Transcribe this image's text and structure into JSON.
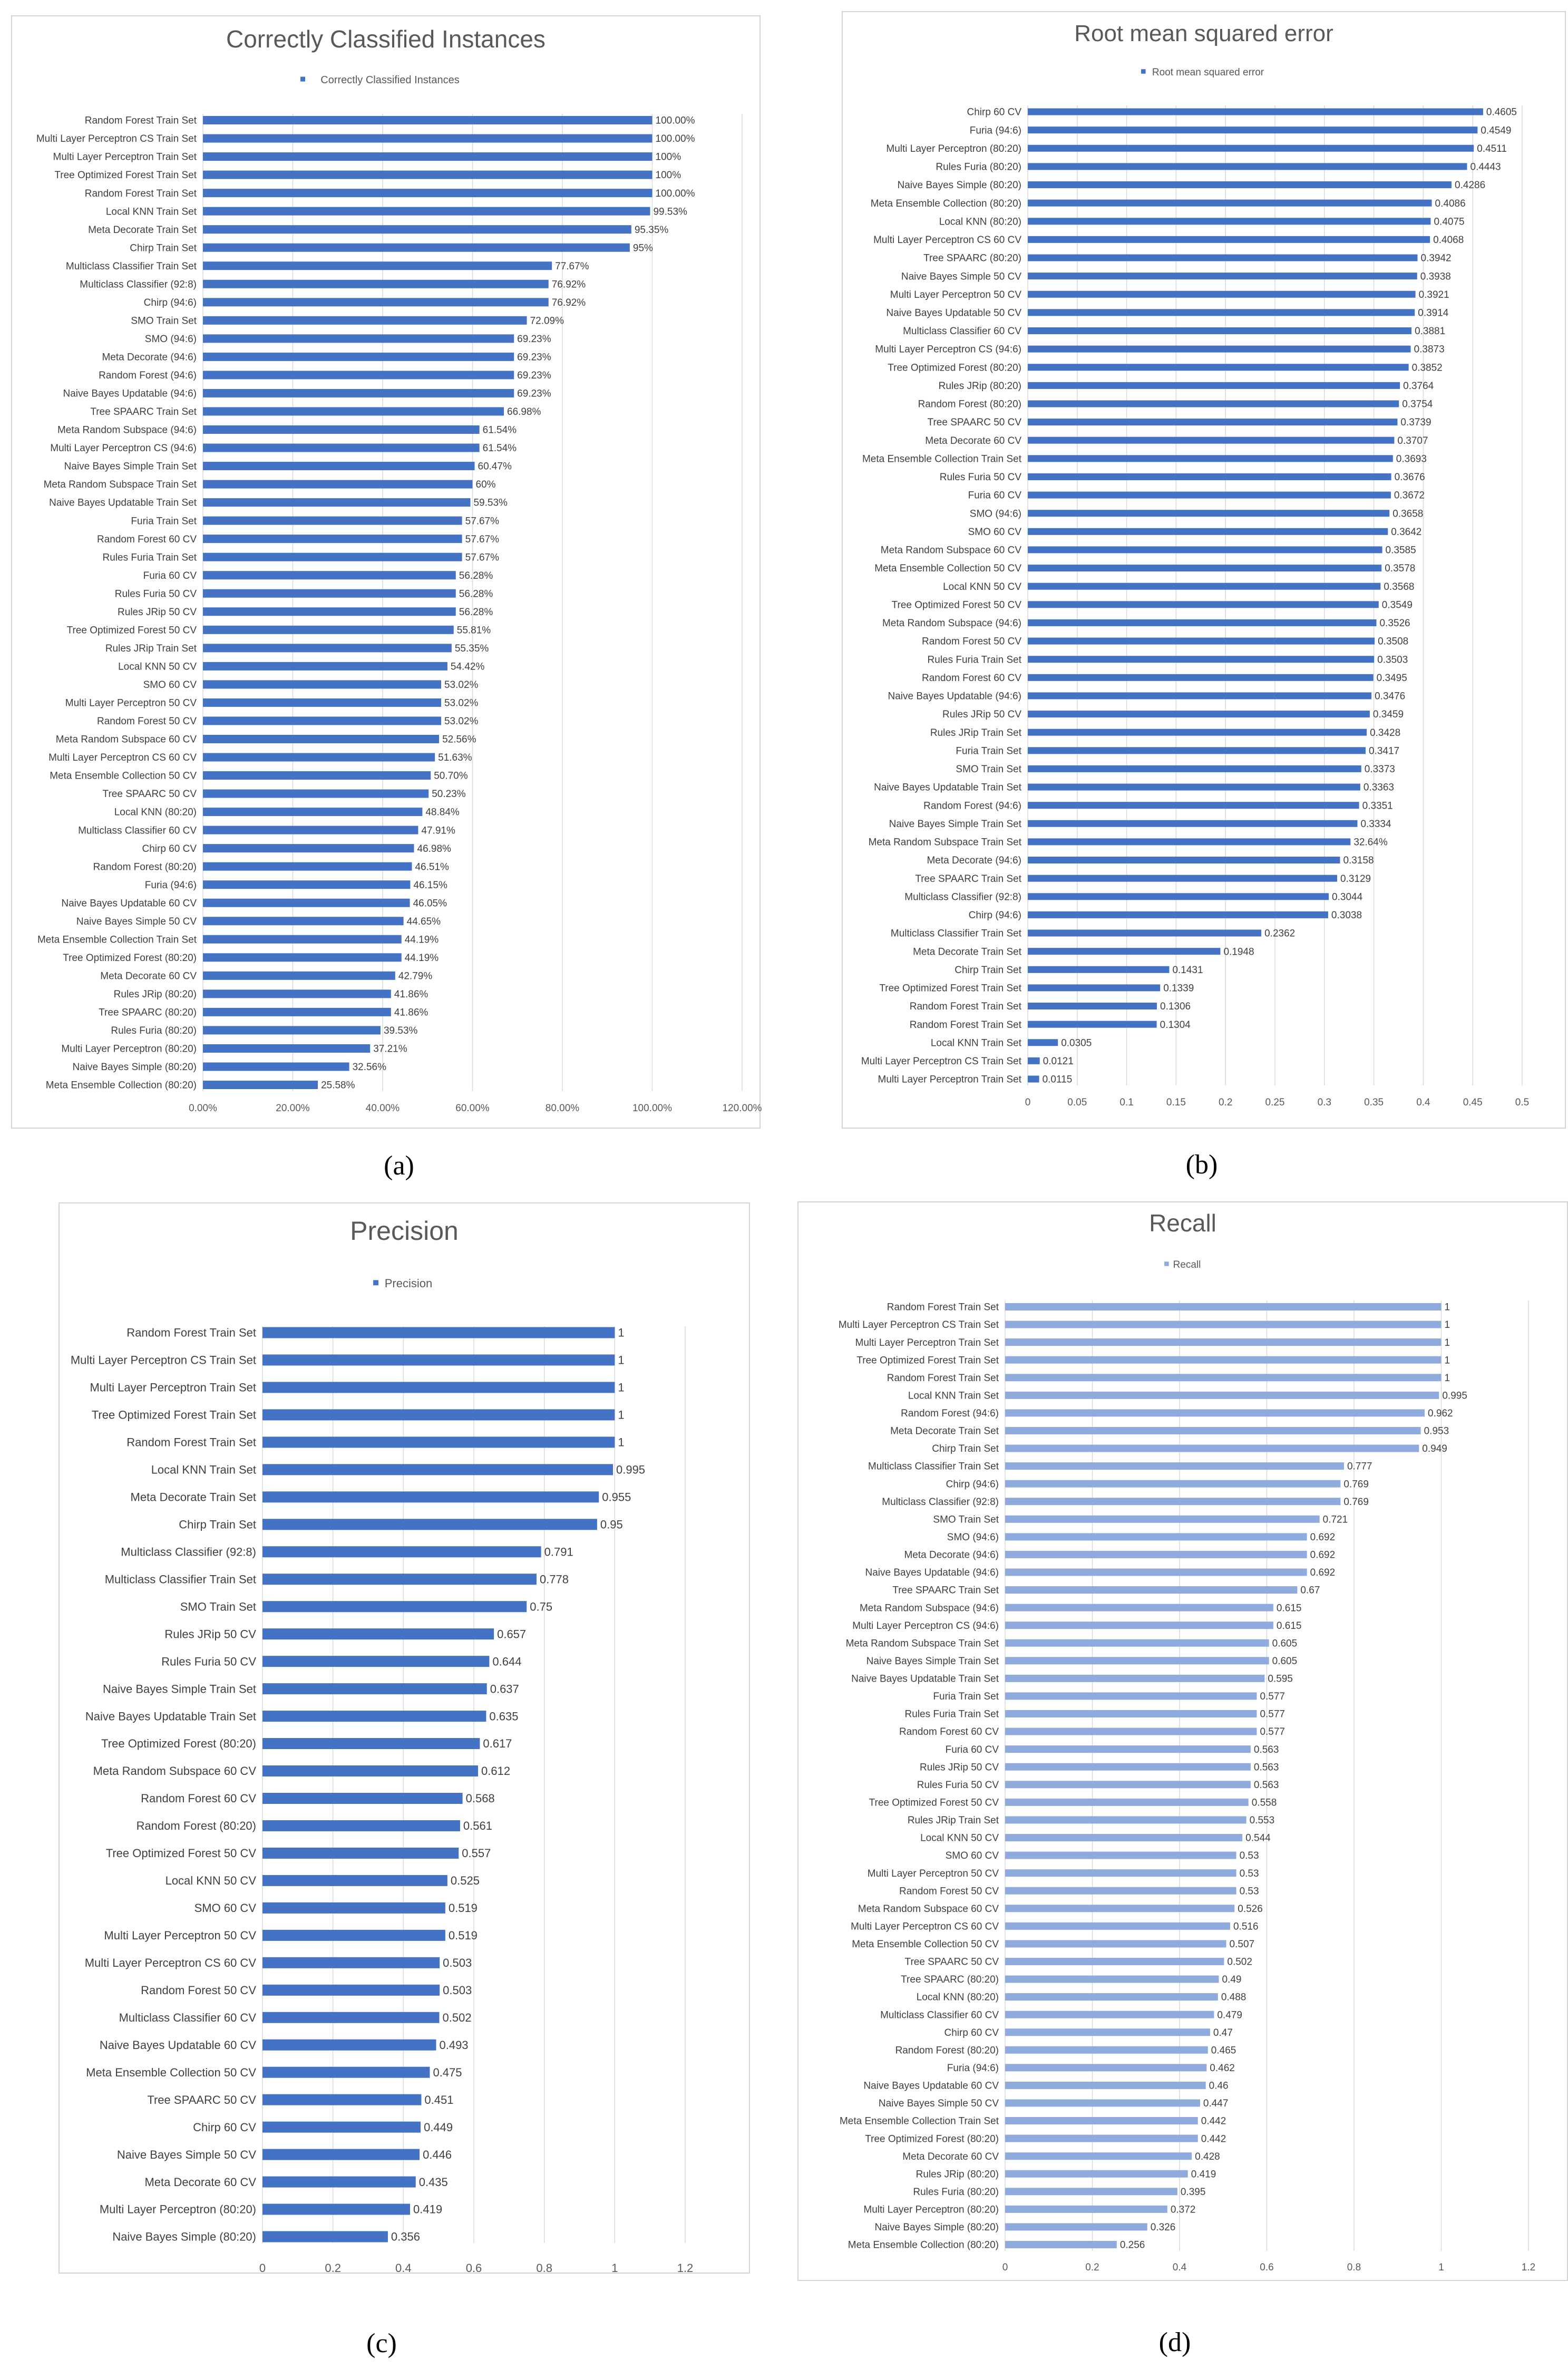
{
  "chart_data": [
    {
      "type": "bar",
      "panel": "(a)",
      "title": "Correctly Classified Instances",
      "legend": "Correctly Classified Instances",
      "color": "#4472c4",
      "xlim": [
        0,
        120
      ],
      "ticks": [
        "0.00%",
        "20.00%",
        "40.00%",
        "60.00%",
        "80.00%",
        "100.00%",
        "120.00%"
      ],
      "categories": [
        "Random Forest Train Set",
        "Multi Layer Perceptron CS Train Set",
        "Multi Layer Perceptron Train Set",
        "Tree Optimized Forest Train Set",
        "Random Forest Train Set",
        "Local KNN Train Set",
        "Meta Decorate Train Set",
        "Chirp Train Set",
        "Multiclass Classifier Train Set",
        "Multiclass Classifier (92:8)",
        "Chirp (94:6)",
        "SMO Train Set",
        "SMO (94:6)",
        "Meta Decorate (94:6)",
        "Random Forest (94:6)",
        "Naive Bayes Updatable (94:6)",
        "Tree SPAARC Train Set",
        "Meta Random Subspace (94:6)",
        "Multi Layer Perceptron CS (94:6)",
        "Naive Bayes Simple Train Set",
        "Meta Random Subspace Train Set",
        "Naive Bayes Updatable Train Set",
        "Furia Train Set",
        "Random Forest 60 CV",
        "Rules Furia Train Set",
        "Furia 60 CV",
        "Rules Furia 50 CV",
        "Rules JRip 50 CV",
        "Tree Optimized Forest 50 CV",
        "Rules JRip Train Set",
        "Local KNN 50 CV",
        "SMO 60 CV",
        "Multi Layer Perceptron 50 CV",
        "Random Forest 50 CV",
        "Meta Random Subspace 60 CV",
        "Multi Layer Perceptron CS 60 CV",
        "Meta Ensemble Collection 50 CV",
        "Tree SPAARC 50 CV",
        "Local KNN (80:20)",
        "Multiclass Classifier 60 CV",
        "Chirp 60 CV",
        "Random Forest (80:20)",
        "Furia (94:6)",
        "Naive Bayes Updatable 60 CV",
        "Naive Bayes Simple 50 CV",
        "Meta Ensemble Collection Train Set",
        "Tree Optimized Forest (80:20)",
        "Meta Decorate 60 CV",
        "Rules JRip (80:20)",
        "Tree SPAARC (80:20)",
        "Rules Furia (80:20)",
        "Multi Layer Perceptron (80:20)",
        "Naive Bayes Simple (80:20)",
        "Meta Ensemble Collection (80:20)"
      ],
      "values": [
        100,
        100,
        100,
        100,
        100,
        99.53,
        95.35,
        95,
        77.67,
        76.92,
        76.92,
        72.09,
        69.23,
        69.23,
        69.23,
        69.23,
        66.98,
        61.54,
        61.54,
        60.47,
        60,
        59.53,
        57.67,
        57.67,
        57.67,
        56.28,
        56.28,
        56.28,
        55.81,
        55.35,
        54.42,
        53.02,
        53.02,
        53.02,
        52.56,
        51.63,
        50.7,
        50.23,
        48.84,
        47.91,
        46.98,
        46.51,
        46.15,
        46.05,
        44.65,
        44.19,
        44.19,
        42.79,
        41.86,
        41.86,
        39.53,
        37.21,
        32.56,
        25.58
      ],
      "labels": [
        "100.00%",
        "100.00%",
        "100%",
        "100%",
        "100.00%",
        "99.53%",
        "95.35%",
        "95%",
        "77.67%",
        "76.92%",
        "76.92%",
        "72.09%",
        "69.23%",
        "69.23%",
        "69.23%",
        "69.23%",
        "66.98%",
        "61.54%",
        "61.54%",
        "60.47%",
        "60%",
        "59.53%",
        "57.67%",
        "57.67%",
        "57.67%",
        "56.28%",
        "56.28%",
        "56.28%",
        "55.81%",
        "55.35%",
        "54.42%",
        "53.02%",
        "53.02%",
        "53.02%",
        "52.56%",
        "51.63%",
        "50.70%",
        "50.23%",
        "48.84%",
        "47.91%",
        "46.98%",
        "46.51%",
        "46.15%",
        "46.05%",
        "44.65%",
        "44.19%",
        "44.19%",
        "42.79%",
        "41.86%",
        "41.86%",
        "39.53%",
        "37.21%",
        "32.56%",
        "25.58%"
      ]
    },
    {
      "type": "bar",
      "panel": "(b)",
      "title": "Root mean squared error",
      "legend": "Root mean squared error",
      "color": "#4472c4",
      "xlim": [
        0,
        0.5
      ],
      "ticks": [
        "0",
        "0.05",
        "0.1",
        "0.15",
        "0.2",
        "0.25",
        "0.3",
        "0.35",
        "0.4",
        "0.45",
        "0.5"
      ],
      "categories": [
        "Chirp 60 CV",
        "Furia (94:6)",
        "Multi Layer Perceptron (80:20)",
        "Rules Furia (80:20)",
        "Naive Bayes Simple (80:20)",
        "Meta Ensemble Collection (80:20)",
        "Local KNN (80:20)",
        "Multi Layer Perceptron CS 60 CV",
        "Tree SPAARC (80:20)",
        "Naive Bayes Simple 50 CV",
        "Multi Layer Perceptron 50 CV",
        "Naive Bayes Updatable 50 CV",
        "Multiclass Classifier 60 CV",
        "Multi Layer Perceptron CS (94:6)",
        "Tree Optimized Forest (80:20)",
        "Rules JRip (80:20)",
        "Random Forest (80:20)",
        "Tree SPAARC 50 CV",
        "Meta Decorate 60 CV",
        "Meta Ensemble Collection Train Set",
        "Rules Furia 50 CV",
        "Furia 60 CV",
        "SMO (94:6)",
        "SMO 60 CV",
        "Meta Random Subspace 60 CV",
        "Meta Ensemble Collection 50 CV",
        "Local KNN 50 CV",
        "Tree Optimized Forest 50 CV",
        "Meta Random Subspace (94:6)",
        "Random Forest 50 CV",
        "Rules Furia Train Set",
        "Random Forest 60 CV",
        "Naive Bayes Updatable (94:6)",
        "Rules JRip 50 CV",
        "Rules JRip Train Set",
        "Furia Train Set",
        "SMO Train Set",
        "Naive Bayes Updatable Train Set",
        "Random Forest (94:6)",
        "Naive Bayes Simple Train Set",
        "Meta Random Subspace Train Set",
        "Meta Decorate (94:6)",
        "Tree SPAARC Train Set",
        "Multiclass Classifier (92:8)",
        "Chirp (94:6)",
        "Multiclass Classifier Train Set",
        "Meta Decorate Train Set",
        "Chirp Train Set",
        "Tree Optimized Forest Train Set",
        "Random Forest Train Set",
        "Random Forest Train Set",
        "Local KNN Train Set",
        "Multi Layer Perceptron CS Train Set",
        "Multi Layer Perceptron Train Set"
      ],
      "values": [
        0.4605,
        0.4549,
        0.4511,
        0.4443,
        0.4286,
        0.4086,
        0.4075,
        0.4068,
        0.3942,
        0.3938,
        0.3921,
        0.3914,
        0.3881,
        0.3873,
        0.3852,
        0.3764,
        0.3754,
        0.3739,
        0.3707,
        0.3693,
        0.3676,
        0.3672,
        0.3658,
        0.3642,
        0.3585,
        0.3578,
        0.3568,
        0.3549,
        0.3526,
        0.3508,
        0.3503,
        0.3495,
        0.3476,
        0.3459,
        0.3428,
        0.3417,
        0.3373,
        0.3363,
        0.3351,
        0.3334,
        0.3264,
        0.3158,
        0.3129,
        0.3044,
        0.3038,
        0.2362,
        0.1948,
        0.1431,
        0.1339,
        0.1306,
        0.1304,
        0.0305,
        0.0121,
        0.0115
      ],
      "labels": [
        "0.4605",
        "0.4549",
        "0.4511",
        "0.4443",
        "0.4286",
        "0.4086",
        "0.4075",
        "0.4068",
        "0.3942",
        "0.3938",
        "0.3921",
        "0.3914",
        "0.3881",
        "0.3873",
        "0.3852",
        "0.3764",
        "0.3754",
        "0.3739",
        "0.3707",
        "0.3693",
        "0.3676",
        "0.3672",
        "0.3658",
        "0.3642",
        "0.3585",
        "0.3578",
        "0.3568",
        "0.3549",
        "0.3526",
        "0.3508",
        "0.3503",
        "0.3495",
        "0.3476",
        "0.3459",
        "0.3428",
        "0.3417",
        "0.3373",
        "0.3363",
        "0.3351",
        "0.3334",
        "32.64%",
        "0.3158",
        "0.3129",
        "0.3044",
        "0.3038",
        "0.2362",
        "0.1948",
        "0.1431",
        "0.1339",
        "0.1306",
        "0.1304",
        "0.0305",
        "0.0121",
        "0.0115"
      ]
    },
    {
      "type": "bar",
      "panel": "(c)",
      "title": "Precision",
      "legend": "Precision",
      "color": "#4472c4",
      "xlim": [
        0,
        1.2
      ],
      "ticks": [
        "0",
        "0.2",
        "0.4",
        "0.6",
        "0.8",
        "1",
        "1.2"
      ],
      "categories": [
        "Random Forest Train Set",
        "Multi Layer Perceptron CS Train Set",
        "Multi Layer Perceptron Train Set",
        "Tree Optimized Forest Train Set",
        "Random Forest Train Set",
        "Local KNN Train Set",
        "Meta Decorate Train Set",
        "Chirp Train Set",
        "Multiclass Classifier (92:8)",
        "Multiclass Classifier Train Set",
        "SMO Train Set",
        "Rules JRip 50 CV",
        "Rules Furia 50 CV",
        "Naive Bayes Simple Train Set",
        "Naive Bayes Updatable Train Set",
        "Tree Optimized Forest (80:20)",
        "Meta Random Subspace 60 CV",
        "Random Forest 60 CV",
        "Random Forest (80:20)",
        "Tree Optimized Forest 50 CV",
        "Local KNN 50 CV",
        "SMO 60 CV",
        "Multi Layer Perceptron 50 CV",
        "Multi Layer Perceptron CS 60 CV",
        "Random Forest 50 CV",
        "Multiclass Classifier 60 CV",
        "Naive Bayes Updatable 60 CV",
        "Meta Ensemble Collection 50 CV",
        "Tree SPAARC 50 CV",
        "Chirp 60 CV",
        "Naive Bayes Simple 50 CV",
        "Meta Decorate 60 CV",
        "Multi Layer Perceptron (80:20)",
        "Naive Bayes Simple (80:20)"
      ],
      "values": [
        1,
        1,
        1,
        1,
        1,
        0.995,
        0.955,
        0.95,
        0.791,
        0.778,
        0.75,
        0.657,
        0.644,
        0.637,
        0.635,
        0.617,
        0.612,
        0.568,
        0.561,
        0.557,
        0.525,
        0.519,
        0.519,
        0.503,
        0.503,
        0.502,
        0.493,
        0.475,
        0.451,
        0.449,
        0.446,
        0.435,
        0.419,
        0.356
      ],
      "labels": [
        "1",
        "1",
        "1",
        "1",
        "1",
        "0.995",
        "0.955",
        "0.95",
        "0.791",
        "0.778",
        "0.75",
        "0.657",
        "0.644",
        "0.637",
        "0.635",
        "0.617",
        "0.612",
        "0.568",
        "0.561",
        "0.557",
        "0.525",
        "0.519",
        "0.519",
        "0.503",
        "0.503",
        "0.502",
        "0.493",
        "0.475",
        "0.451",
        "0.449",
        "0.446",
        "0.435",
        "0.419",
        "0.356"
      ]
    },
    {
      "type": "bar",
      "panel": "(d)",
      "title": "Recall",
      "legend": "Recall",
      "color": "#8faadc",
      "xlim": [
        0,
        1.2
      ],
      "ticks": [
        "0",
        "0.2",
        "0.4",
        "0.6",
        "0.8",
        "1",
        "1.2"
      ],
      "categories": [
        "Random Forest Train Set",
        "Multi Layer Perceptron CS Train Set",
        "Multi Layer Perceptron Train Set",
        "Tree Optimized Forest Train Set",
        "Random Forest Train Set",
        "Local KNN Train Set",
        "Random Forest (94:6)",
        "Meta Decorate Train Set",
        "Chirp Train Set",
        "Multiclass Classifier Train Set",
        "Chirp (94:6)",
        "Multiclass Classifier (92:8)",
        "SMO Train Set",
        "SMO (94:6)",
        "Meta Decorate (94:6)",
        "Naive Bayes Updatable (94:6)",
        "Tree SPAARC Train Set",
        "Meta Random Subspace (94:6)",
        "Multi Layer Perceptron CS (94:6)",
        "Meta Random Subspace Train Set",
        "Naive Bayes Simple Train Set",
        "Naive Bayes Updatable Train Set",
        "Furia Train Set",
        "Rules Furia Train Set",
        "Random Forest 60 CV",
        "Furia 60 CV",
        "Rules JRip 50 CV",
        "Rules Furia 50 CV",
        "Tree Optimized Forest 50 CV",
        "Rules JRip Train Set",
        "Local KNN 50 CV",
        "SMO 60 CV",
        "Multi Layer Perceptron 50 CV",
        "Random Forest 50 CV",
        "Meta Random Subspace 60 CV",
        "Multi Layer Perceptron CS 60 CV",
        "Meta Ensemble Collection 50 CV",
        "Tree SPAARC 50 CV",
        "Tree SPAARC (80:20)",
        "Local KNN (80:20)",
        "Multiclass Classifier 60 CV",
        "Chirp 60 CV",
        "Random Forest (80:20)",
        "Furia (94:6)",
        "Naive Bayes Updatable 60 CV",
        "Naive Bayes Simple 50 CV",
        "Meta Ensemble Collection Train Set",
        "Tree Optimized Forest (80:20)",
        "Meta Decorate 60 CV",
        "Rules JRip (80:20)",
        "Rules Furia (80:20)",
        "Multi Layer Perceptron (80:20)",
        "Naive Bayes Simple (80:20)",
        "Meta Ensemble Collection (80:20)"
      ],
      "values": [
        1,
        1,
        1,
        1,
        1,
        0.995,
        0.962,
        0.953,
        0.949,
        0.777,
        0.769,
        0.769,
        0.721,
        0.692,
        0.692,
        0.692,
        0.67,
        0.615,
        0.615,
        0.605,
        0.605,
        0.595,
        0.577,
        0.577,
        0.577,
        0.563,
        0.563,
        0.563,
        0.558,
        0.553,
        0.544,
        0.53,
        0.53,
        0.53,
        0.526,
        0.516,
        0.507,
        0.502,
        0.49,
        0.488,
        0.479,
        0.47,
        0.465,
        0.462,
        0.46,
        0.447,
        0.442,
        0.442,
        0.428,
        0.419,
        0.395,
        0.372,
        0.326,
        0.256
      ],
      "labels": [
        "1",
        "1",
        "1",
        "1",
        "1",
        "0.995",
        "0.962",
        "0.953",
        "0.949",
        "0.777",
        "0.769",
        "0.769",
        "0.721",
        "0.692",
        "0.692",
        "0.692",
        "0.67",
        "0.615",
        "0.615",
        "0.605",
        "0.605",
        "0.595",
        "0.577",
        "0.577",
        "0.577",
        "0.563",
        "0.563",
        "0.563",
        "0.558",
        "0.553",
        "0.544",
        "0.53",
        "0.53",
        "0.53",
        "0.526",
        "0.516",
        "0.507",
        "0.502",
        "0.49",
        "0.488",
        "0.479",
        "0.47",
        "0.465",
        "0.462",
        "0.46",
        "0.447",
        "0.442",
        "0.442",
        "0.428",
        "0.419",
        "0.395",
        "0.372",
        "0.326",
        "0.256"
      ]
    }
  ]
}
